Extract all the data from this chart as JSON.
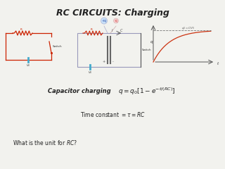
{
  "title": "RC CIRCUITS: Charging",
  "title_fontsize": 9,
  "bg_color": "#f2f2ee",
  "formula_label": "Capacitor charging",
  "formula": "$q = q_0\\left[1 - e^{-t/(RC)}\\right]$",
  "time_constant": "Time constant $= \\tau = RC$",
  "question": "What is the unit for $RC$?",
  "circuit1_color": "#cc2200",
  "circuit2_border": "#9999bb",
  "switch_label": "Switch",
  "v0_label": "$V_0$",
  "graph_curve_color": "#cc3311",
  "graph_label": "$q_0 = CV_0$",
  "resistor_color": "#cc2200",
  "battery_color": "#44aacc",
  "text_color": "#222222",
  "formula_fontsize": 6,
  "time_fontsize": 5.5,
  "question_fontsize": 5.5,
  "switch_fontsize": 3,
  "v0_fontsize": 3
}
